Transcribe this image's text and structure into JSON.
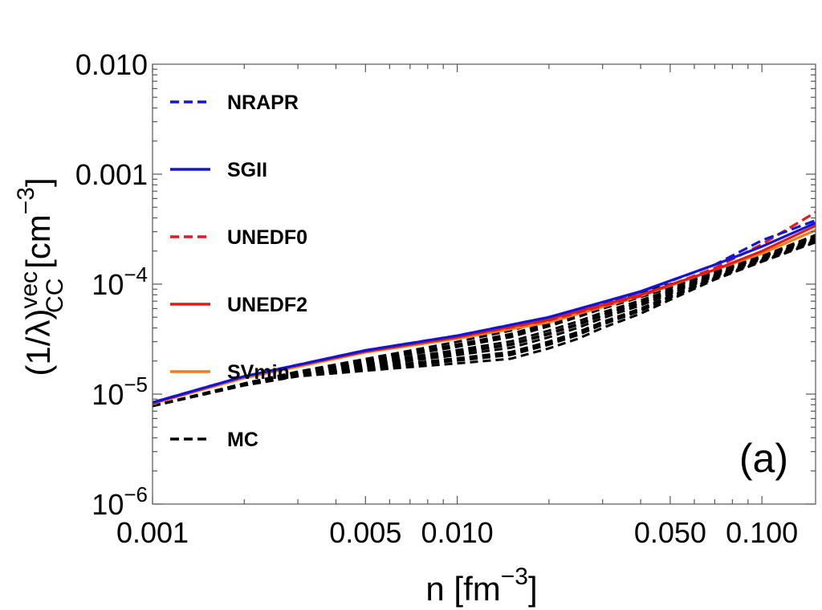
{
  "chart_data": {
    "type": "line",
    "xscale": "log",
    "yscale": "log",
    "xlim": [
      0.001,
      0.15
    ],
    "ylim": [
      1e-06,
      0.01
    ],
    "xlabel": "n [fm",
    "xlabel_exp": "−3",
    "xlabel_close": "]",
    "ylabel_main": "(1/λ)",
    "ylabel_sup": "vec",
    "ylabel_sub": "CC",
    "ylabel_unit": " [cm",
    "ylabel_unit_exp": "−3",
    "ylabel_close": "]",
    "panel_label": "(a)",
    "x_ticks": [
      {
        "value": 0.001,
        "label": "0.001"
      },
      {
        "value": 0.005,
        "label": "0.005"
      },
      {
        "value": 0.01,
        "label": "0.010"
      },
      {
        "value": 0.05,
        "label": "0.050"
      },
      {
        "value": 0.1,
        "label": "0.100"
      }
    ],
    "y_ticks": [
      {
        "value": 1e-06,
        "base": "10",
        "exp": "−6"
      },
      {
        "value": 1e-05,
        "base": "10",
        "exp": "−5"
      },
      {
        "value": 0.0001,
        "base": "10",
        "exp": "−4"
      },
      {
        "value": 0.001,
        "plain": "0.001"
      },
      {
        "value": 0.01,
        "plain": "0.010"
      }
    ],
    "legend": [
      {
        "label": "NRAPR",
        "color": "#1414d6",
        "dash": "dashed"
      },
      {
        "label": "SGII",
        "color": "#1414d6",
        "dash": "solid"
      },
      {
        "label": "UNEDF0",
        "color": "#e01b1b",
        "dash": "dashed"
      },
      {
        "label": "UNEDF2",
        "color": "#e01b1b",
        "dash": "solid"
      },
      {
        "label": "SVmin",
        "color": "#f47c12",
        "dash": "solid"
      },
      {
        "label": "MC",
        "color": "#000000",
        "dash": "dashed"
      }
    ],
    "series": [
      {
        "name": "SVmin",
        "color": "#f47c12",
        "dash": "solid",
        "x": [
          0.001,
          0.002,
          0.005,
          0.01,
          0.02,
          0.04,
          0.07,
          0.1,
          0.15
        ],
        "y": [
          8.2e-06,
          1.4e-05,
          2.4e-05,
          3.2e-05,
          4.5e-05,
          7.8e-05,
          0.000135,
          0.00019,
          0.00031
        ]
      },
      {
        "name": "UNEDF2",
        "color": "#e01b1b",
        "dash": "solid",
        "x": [
          0.001,
          0.002,
          0.005,
          0.01,
          0.02,
          0.04,
          0.07,
          0.1,
          0.15
        ],
        "y": [
          8.3e-06,
          1.45e-05,
          2.45e-05,
          3.3e-05,
          4.8e-05,
          8e-05,
          0.000135,
          0.0002,
          0.00034
        ]
      },
      {
        "name": "UNEDF0",
        "color": "#e01b1b",
        "dash": "dashed",
        "x": [
          0.001,
          0.002,
          0.005,
          0.01,
          0.02,
          0.04,
          0.07,
          0.1,
          0.15
        ],
        "y": [
          8.3e-06,
          1.45e-05,
          2.45e-05,
          3.3e-05,
          4.7e-05,
          7.8e-05,
          0.00014,
          0.00023,
          0.00045
        ]
      },
      {
        "name": "SGII",
        "color": "#1414d6",
        "dash": "solid",
        "x": [
          0.001,
          0.002,
          0.005,
          0.01,
          0.02,
          0.04,
          0.07,
          0.1,
          0.15
        ],
        "y": [
          8.4e-06,
          1.45e-05,
          2.5e-05,
          3.4e-05,
          5e-05,
          8.6e-05,
          0.00015,
          0.00022,
          0.00036
        ]
      },
      {
        "name": "NRAPR",
        "color": "#1414d6",
        "dash": "dashed",
        "x": [
          0.001,
          0.002,
          0.005,
          0.01,
          0.02,
          0.04,
          0.07,
          0.1,
          0.15
        ],
        "y": [
          8.4e-06,
          1.45e-05,
          2.5e-05,
          3.4e-05,
          5e-05,
          8.5e-05,
          0.00015,
          0.00025,
          0.00038
        ]
      }
    ],
    "mc_band": {
      "name": "MC",
      "color": "#000000",
      "dash": "dashed",
      "count": 12,
      "x": [
        0.001,
        0.002,
        0.003,
        0.006,
        0.01,
        0.015,
        0.02,
        0.025,
        0.03,
        0.04,
        0.05,
        0.07,
        0.1,
        0.15
      ],
      "y_low": [
        7.8e-06,
        1.2e-05,
        1.45e-05,
        1.7e-05,
        1.9e-05,
        2.1e-05,
        2.6e-05,
        3.2e-05,
        4e-05,
        5.4e-05,
        7.2e-05,
        0.00011,
        0.00016,
        0.00024
      ],
      "y_high": [
        7.8e-06,
        1.25e-05,
        1.6e-05,
        2.3e-05,
        3e-05,
        3.8e-05,
        4.8e-05,
        5.8e-05,
        6.8e-05,
        8.5e-05,
        0.0001,
        0.00013,
        0.00018,
        0.00028
      ]
    }
  }
}
